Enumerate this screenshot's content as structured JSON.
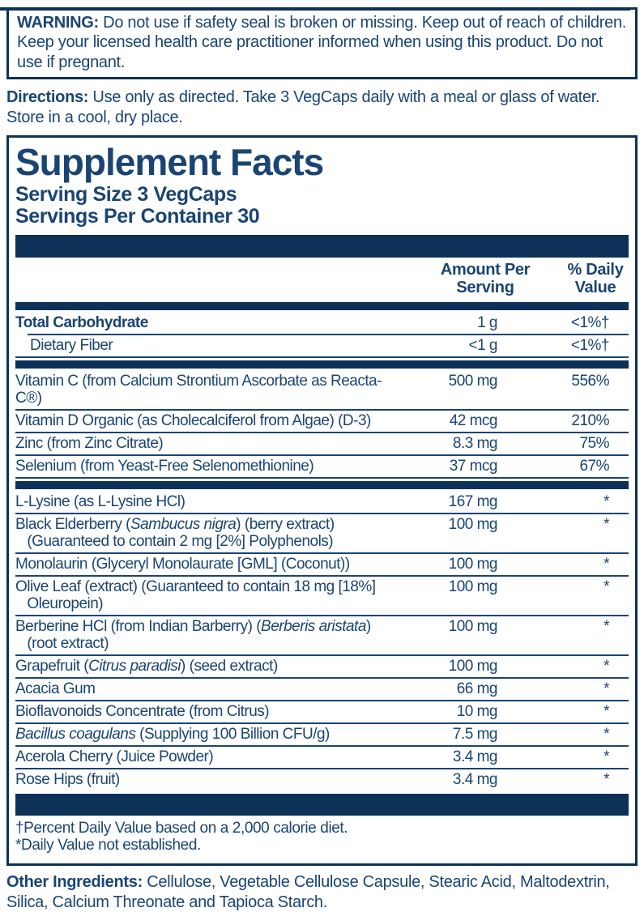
{
  "colors": {
    "navy_text": "#1a4473",
    "dark_bar": "#0e3158",
    "background": "#ffffff"
  },
  "warning": {
    "label": "WARNING:",
    "text": " Do not use if safety seal is broken or missing. Keep out of reach of children. Keep your licensed health care practitioner informed when using this product. Do not use if pregnant."
  },
  "directions": {
    "label": "Directions:",
    "text": " Use only as directed. Take 3 VegCaps daily with a meal or glass of water. Store in a cool, dry place."
  },
  "supplement_facts": {
    "title": "Supplement Facts",
    "serving_size": "Serving Size 3 VegCaps",
    "servings_per_container": "Servings Per Container 30",
    "columns": {
      "amount": "Amount Per\nServing",
      "dv": "% Daily\nValue"
    },
    "table": [
      {
        "type": "bar",
        "size": "thin"
      },
      {
        "type": "row",
        "name": "Total Carbohydrate",
        "amount": "1 g",
        "dv": "<1%†",
        "bold": true
      },
      {
        "type": "line",
        "indent": true
      },
      {
        "type": "row",
        "name": "Dietary Fiber",
        "amount": "<1 g",
        "dv": "<1%†",
        "indent": true
      },
      {
        "type": "line"
      },
      {
        "type": "bar",
        "size": "thin"
      },
      {
        "type": "row",
        "name": "Vitamin C (from Calcium Strontium Ascorbate as Reacta-C®)",
        "amount": "500 mg",
        "dv": "556%"
      },
      {
        "type": "line"
      },
      {
        "type": "row",
        "name": "Vitamin D Organic (as Cholecalciferol from Algae) (D-3)",
        "amount": "42 mcg",
        "dv": "210%"
      },
      {
        "type": "line"
      },
      {
        "type": "row",
        "name": "Zinc (from Zinc Citrate)",
        "amount": "8.3 mg",
        "dv": "75%"
      },
      {
        "type": "line"
      },
      {
        "type": "row",
        "name": "Selenium (from Yeast-Free Selenomethionine)",
        "amount": "37 mcg",
        "dv": "67%"
      },
      {
        "type": "line"
      },
      {
        "type": "bar",
        "size": "thin"
      },
      {
        "type": "row",
        "name": "L-Lysine (as L-Lysine HCl)",
        "amount": "167 mg",
        "dv": "*"
      },
      {
        "type": "line"
      },
      {
        "type": "row",
        "name": "Black Elderberry (*Sambucus nigra*) (berry extract)\n   (Guaranteed to contain 2 mg [2%] Polyphenols)",
        "amount": "100 mg",
        "dv": "*"
      },
      {
        "type": "line"
      },
      {
        "type": "row",
        "name": "Monolaurin (Glyceryl Monolaurate [GML] (Coconut))",
        "amount": "100 mg",
        "dv": "*"
      },
      {
        "type": "line"
      },
      {
        "type": "row",
        "name": "Olive Leaf (extract) (Guaranteed to contain 18 mg [18%]\n   Oleuropein)",
        "amount": "100 mg",
        "dv": "*"
      },
      {
        "type": "line"
      },
      {
        "type": "row",
        "name": "Berberine HCl (from Indian Barberry) (*Berberis aristata*)\n   (root extract)",
        "amount": "100 mg",
        "dv": "*"
      },
      {
        "type": "line"
      },
      {
        "type": "row",
        "name": "Grapefruit (*Citrus paradisi*) (seed extract)",
        "amount": "100 mg",
        "dv": "*"
      },
      {
        "type": "line"
      },
      {
        "type": "row",
        "name": "Acacia Gum",
        "amount": "66 mg",
        "dv": "*"
      },
      {
        "type": "line"
      },
      {
        "type": "row",
        "name": "Bioflavonoids Concentrate (from Citrus)",
        "amount": "10 mg",
        "dv": "*"
      },
      {
        "type": "line"
      },
      {
        "type": "row",
        "name": "*Bacillus coagulans* (Supplying 100 Billion CFU/g)",
        "amount": "7.5 mg",
        "dv": "*"
      },
      {
        "type": "line"
      },
      {
        "type": "row",
        "name": "Acerola Cherry (Juice Powder)",
        "amount": "3.4 mg",
        "dv": "*"
      },
      {
        "type": "line"
      },
      {
        "type": "row",
        "name": "Rose Hips (fruit)",
        "amount": "3.4 mg",
        "dv": "*"
      },
      {
        "type": "bar",
        "size": "thick"
      }
    ],
    "footnotes": [
      "†Percent Daily Value based on a 2,000 calorie diet.",
      "*Daily Value not established."
    ]
  },
  "other_ingredients": {
    "label": "Other Ingredients:",
    "text": " Cellulose, Vegetable Cellulose Capsule, Stearic Acid, Maltodextrin, Silica, Calcium Threonate and Tapioca Starch."
  }
}
